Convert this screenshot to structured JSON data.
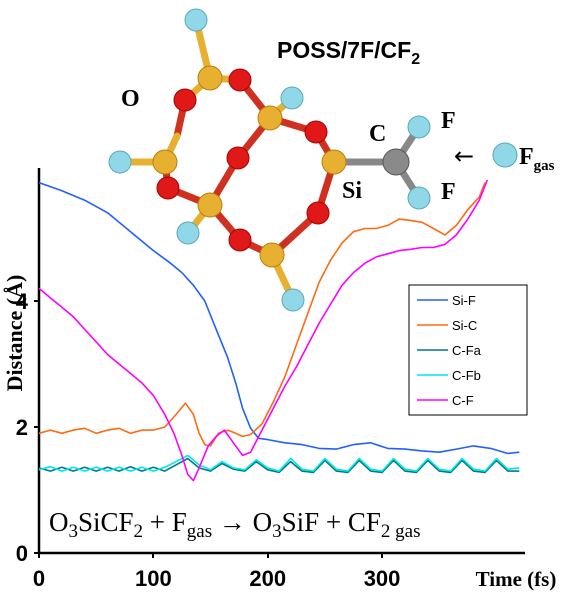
{
  "chart_data": {
    "type": "line",
    "title": "POSS/7F/CF",
    "title_sub": "2",
    "xlabel": "Time (fs)",
    "ylabel": "Distance (Å)",
    "xlim": [
      0,
      425
    ],
    "ylim": [
      0,
      6
    ],
    "x_ticks": [
      0,
      100,
      200,
      300
    ],
    "y_ticks": [
      0,
      2,
      4
    ],
    "legend_position": "right",
    "series": [
      {
        "name": "Si-F",
        "color": "#2060ff",
        "points": [
          [
            0,
            5.88
          ],
          [
            20,
            5.75
          ],
          [
            40,
            5.6
          ],
          [
            60,
            5.4
          ],
          [
            80,
            5.1
          ],
          [
            100,
            4.8
          ],
          [
            115,
            4.6
          ],
          [
            125,
            4.45
          ],
          [
            135,
            4.25
          ],
          [
            145,
            4.0
          ],
          [
            155,
            3.55
          ],
          [
            165,
            3.1
          ],
          [
            172,
            2.7
          ],
          [
            178,
            2.3
          ],
          [
            185,
            1.98
          ],
          [
            192,
            1.82
          ],
          [
            200,
            1.8
          ],
          [
            215,
            1.75
          ],
          [
            230,
            1.72
          ],
          [
            245,
            1.66
          ],
          [
            260,
            1.65
          ],
          [
            275,
            1.72
          ],
          [
            290,
            1.75
          ],
          [
            305,
            1.66
          ],
          [
            320,
            1.65
          ],
          [
            335,
            1.62
          ],
          [
            350,
            1.6
          ],
          [
            365,
            1.65
          ],
          [
            380,
            1.7
          ],
          [
            395,
            1.66
          ],
          [
            410,
            1.58
          ],
          [
            420,
            1.6
          ]
        ]
      },
      {
        "name": "Si-C",
        "color": "#ff6a10",
        "points": [
          [
            0,
            1.9
          ],
          [
            10,
            1.95
          ],
          [
            20,
            1.9
          ],
          [
            30,
            1.95
          ],
          [
            40,
            1.98
          ],
          [
            50,
            1.9
          ],
          [
            60,
            1.95
          ],
          [
            70,
            1.98
          ],
          [
            80,
            1.9
          ],
          [
            90,
            1.95
          ],
          [
            100,
            1.95
          ],
          [
            110,
            2.0
          ],
          [
            120,
            2.2
          ],
          [
            128,
            2.38
          ],
          [
            135,
            2.2
          ],
          [
            140,
            1.9
          ],
          [
            145,
            1.72
          ],
          [
            150,
            1.7
          ],
          [
            157,
            1.9
          ],
          [
            165,
            1.95
          ],
          [
            172,
            1.9
          ],
          [
            178,
            1.85
          ],
          [
            185,
            1.88
          ],
          [
            195,
            2.05
          ],
          [
            205,
            2.4
          ],
          [
            215,
            2.8
          ],
          [
            225,
            3.3
          ],
          [
            235,
            3.8
          ],
          [
            245,
            4.3
          ],
          [
            255,
            4.65
          ],
          [
            265,
            4.92
          ],
          [
            275,
            5.1
          ],
          [
            285,
            5.15
          ],
          [
            295,
            5.15
          ],
          [
            305,
            5.2
          ],
          [
            315,
            5.3
          ],
          [
            325,
            5.28
          ],
          [
            335,
            5.25
          ],
          [
            345,
            5.15
          ],
          [
            355,
            5.05
          ],
          [
            365,
            5.2
          ],
          [
            375,
            5.45
          ],
          [
            385,
            5.65
          ],
          [
            390,
            5.88
          ]
        ]
      },
      {
        "name": "C-Fa",
        "color": "#007b80",
        "points": [
          [
            0,
            1.35
          ],
          [
            10,
            1.3
          ],
          [
            20,
            1.36
          ],
          [
            30,
            1.3
          ],
          [
            40,
            1.36
          ],
          [
            50,
            1.3
          ],
          [
            60,
            1.36
          ],
          [
            70,
            1.3
          ],
          [
            80,
            1.37
          ],
          [
            90,
            1.3
          ],
          [
            100,
            1.36
          ],
          [
            110,
            1.3
          ],
          [
            120,
            1.4
          ],
          [
            130,
            1.5
          ],
          [
            140,
            1.35
          ],
          [
            150,
            1.3
          ],
          [
            160,
            1.42
          ],
          [
            170,
            1.33
          ],
          [
            180,
            1.3
          ],
          [
            190,
            1.45
          ],
          [
            200,
            1.32
          ],
          [
            210,
            1.28
          ],
          [
            220,
            1.45
          ],
          [
            230,
            1.3
          ],
          [
            240,
            1.28
          ],
          [
            250,
            1.47
          ],
          [
            260,
            1.3
          ],
          [
            270,
            1.28
          ],
          [
            280,
            1.47
          ],
          [
            290,
            1.3
          ],
          [
            300,
            1.28
          ],
          [
            310,
            1.47
          ],
          [
            320,
            1.3
          ],
          [
            330,
            1.28
          ],
          [
            340,
            1.47
          ],
          [
            350,
            1.3
          ],
          [
            360,
            1.28
          ],
          [
            370,
            1.47
          ],
          [
            380,
            1.3
          ],
          [
            390,
            1.28
          ],
          [
            400,
            1.47
          ],
          [
            410,
            1.3
          ],
          [
            420,
            1.3
          ]
        ]
      },
      {
        "name": "C-Fb",
        "color": "#00e5ee",
        "points": [
          [
            0,
            1.32
          ],
          [
            10,
            1.37
          ],
          [
            20,
            1.3
          ],
          [
            30,
            1.36
          ],
          [
            40,
            1.3
          ],
          [
            50,
            1.36
          ],
          [
            60,
            1.3
          ],
          [
            70,
            1.36
          ],
          [
            80,
            1.3
          ],
          [
            90,
            1.36
          ],
          [
            100,
            1.3
          ],
          [
            110,
            1.36
          ],
          [
            120,
            1.45
          ],
          [
            130,
            1.55
          ],
          [
            140,
            1.4
          ],
          [
            150,
            1.32
          ],
          [
            160,
            1.45
          ],
          [
            170,
            1.35
          ],
          [
            180,
            1.32
          ],
          [
            190,
            1.48
          ],
          [
            200,
            1.35
          ],
          [
            210,
            1.3
          ],
          [
            220,
            1.5
          ],
          [
            230,
            1.33
          ],
          [
            240,
            1.3
          ],
          [
            250,
            1.5
          ],
          [
            260,
            1.33
          ],
          [
            270,
            1.3
          ],
          [
            280,
            1.5
          ],
          [
            290,
            1.33
          ],
          [
            300,
            1.3
          ],
          [
            310,
            1.5
          ],
          [
            320,
            1.33
          ],
          [
            330,
            1.3
          ],
          [
            340,
            1.5
          ],
          [
            350,
            1.33
          ],
          [
            360,
            1.3
          ],
          [
            370,
            1.5
          ],
          [
            380,
            1.33
          ],
          [
            390,
            1.3
          ],
          [
            400,
            1.5
          ],
          [
            410,
            1.33
          ],
          [
            420,
            1.35
          ]
        ]
      },
      {
        "name": "C-F",
        "color": "#ff00ff",
        "points": [
          [
            0,
            4.2
          ],
          [
            10,
            4.05
          ],
          [
            20,
            3.9
          ],
          [
            30,
            3.75
          ],
          [
            40,
            3.55
          ],
          [
            50,
            3.35
          ],
          [
            60,
            3.15
          ],
          [
            70,
            3.0
          ],
          [
            80,
            2.85
          ],
          [
            90,
            2.7
          ],
          [
            100,
            2.5
          ],
          [
            110,
            2.2
          ],
          [
            118,
            1.9
          ],
          [
            125,
            1.55
          ],
          [
            130,
            1.25
          ],
          [
            135,
            1.15
          ],
          [
            140,
            1.35
          ],
          [
            148,
            1.7
          ],
          [
            155,
            1.85
          ],
          [
            162,
            1.95
          ],
          [
            170,
            1.75
          ],
          [
            178,
            1.55
          ],
          [
            185,
            1.6
          ],
          [
            195,
            1.95
          ],
          [
            205,
            2.3
          ],
          [
            215,
            2.65
          ],
          [
            225,
            2.95
          ],
          [
            235,
            3.3
          ],
          [
            245,
            3.65
          ],
          [
            255,
            3.95
          ],
          [
            265,
            4.25
          ],
          [
            275,
            4.45
          ],
          [
            285,
            4.6
          ],
          [
            295,
            4.7
          ],
          [
            305,
            4.75
          ],
          [
            315,
            4.8
          ],
          [
            325,
            4.82
          ],
          [
            335,
            4.85
          ],
          [
            345,
            4.85
          ],
          [
            355,
            4.9
          ],
          [
            365,
            5.05
          ],
          [
            375,
            5.3
          ],
          [
            385,
            5.6
          ],
          [
            392,
            5.92
          ]
        ]
      }
    ],
    "reaction": {
      "a": "O",
      "a_sub": "3",
      "b": "SiCF",
      "b_sub": "2",
      "plus1": " + F",
      "gas_sub1": "gas",
      "arrow": " → O",
      "c_sub": "3",
      "d": "SiF + CF",
      "d_sub": "2",
      "gas_sub2": " gas"
    },
    "atom_labels": {
      "O": "O",
      "Si": "Si",
      "C": "C",
      "F1": "F",
      "F2": "F",
      "Fgas": "F",
      "Fgas_sub": "gas",
      "arrow": "←"
    }
  }
}
